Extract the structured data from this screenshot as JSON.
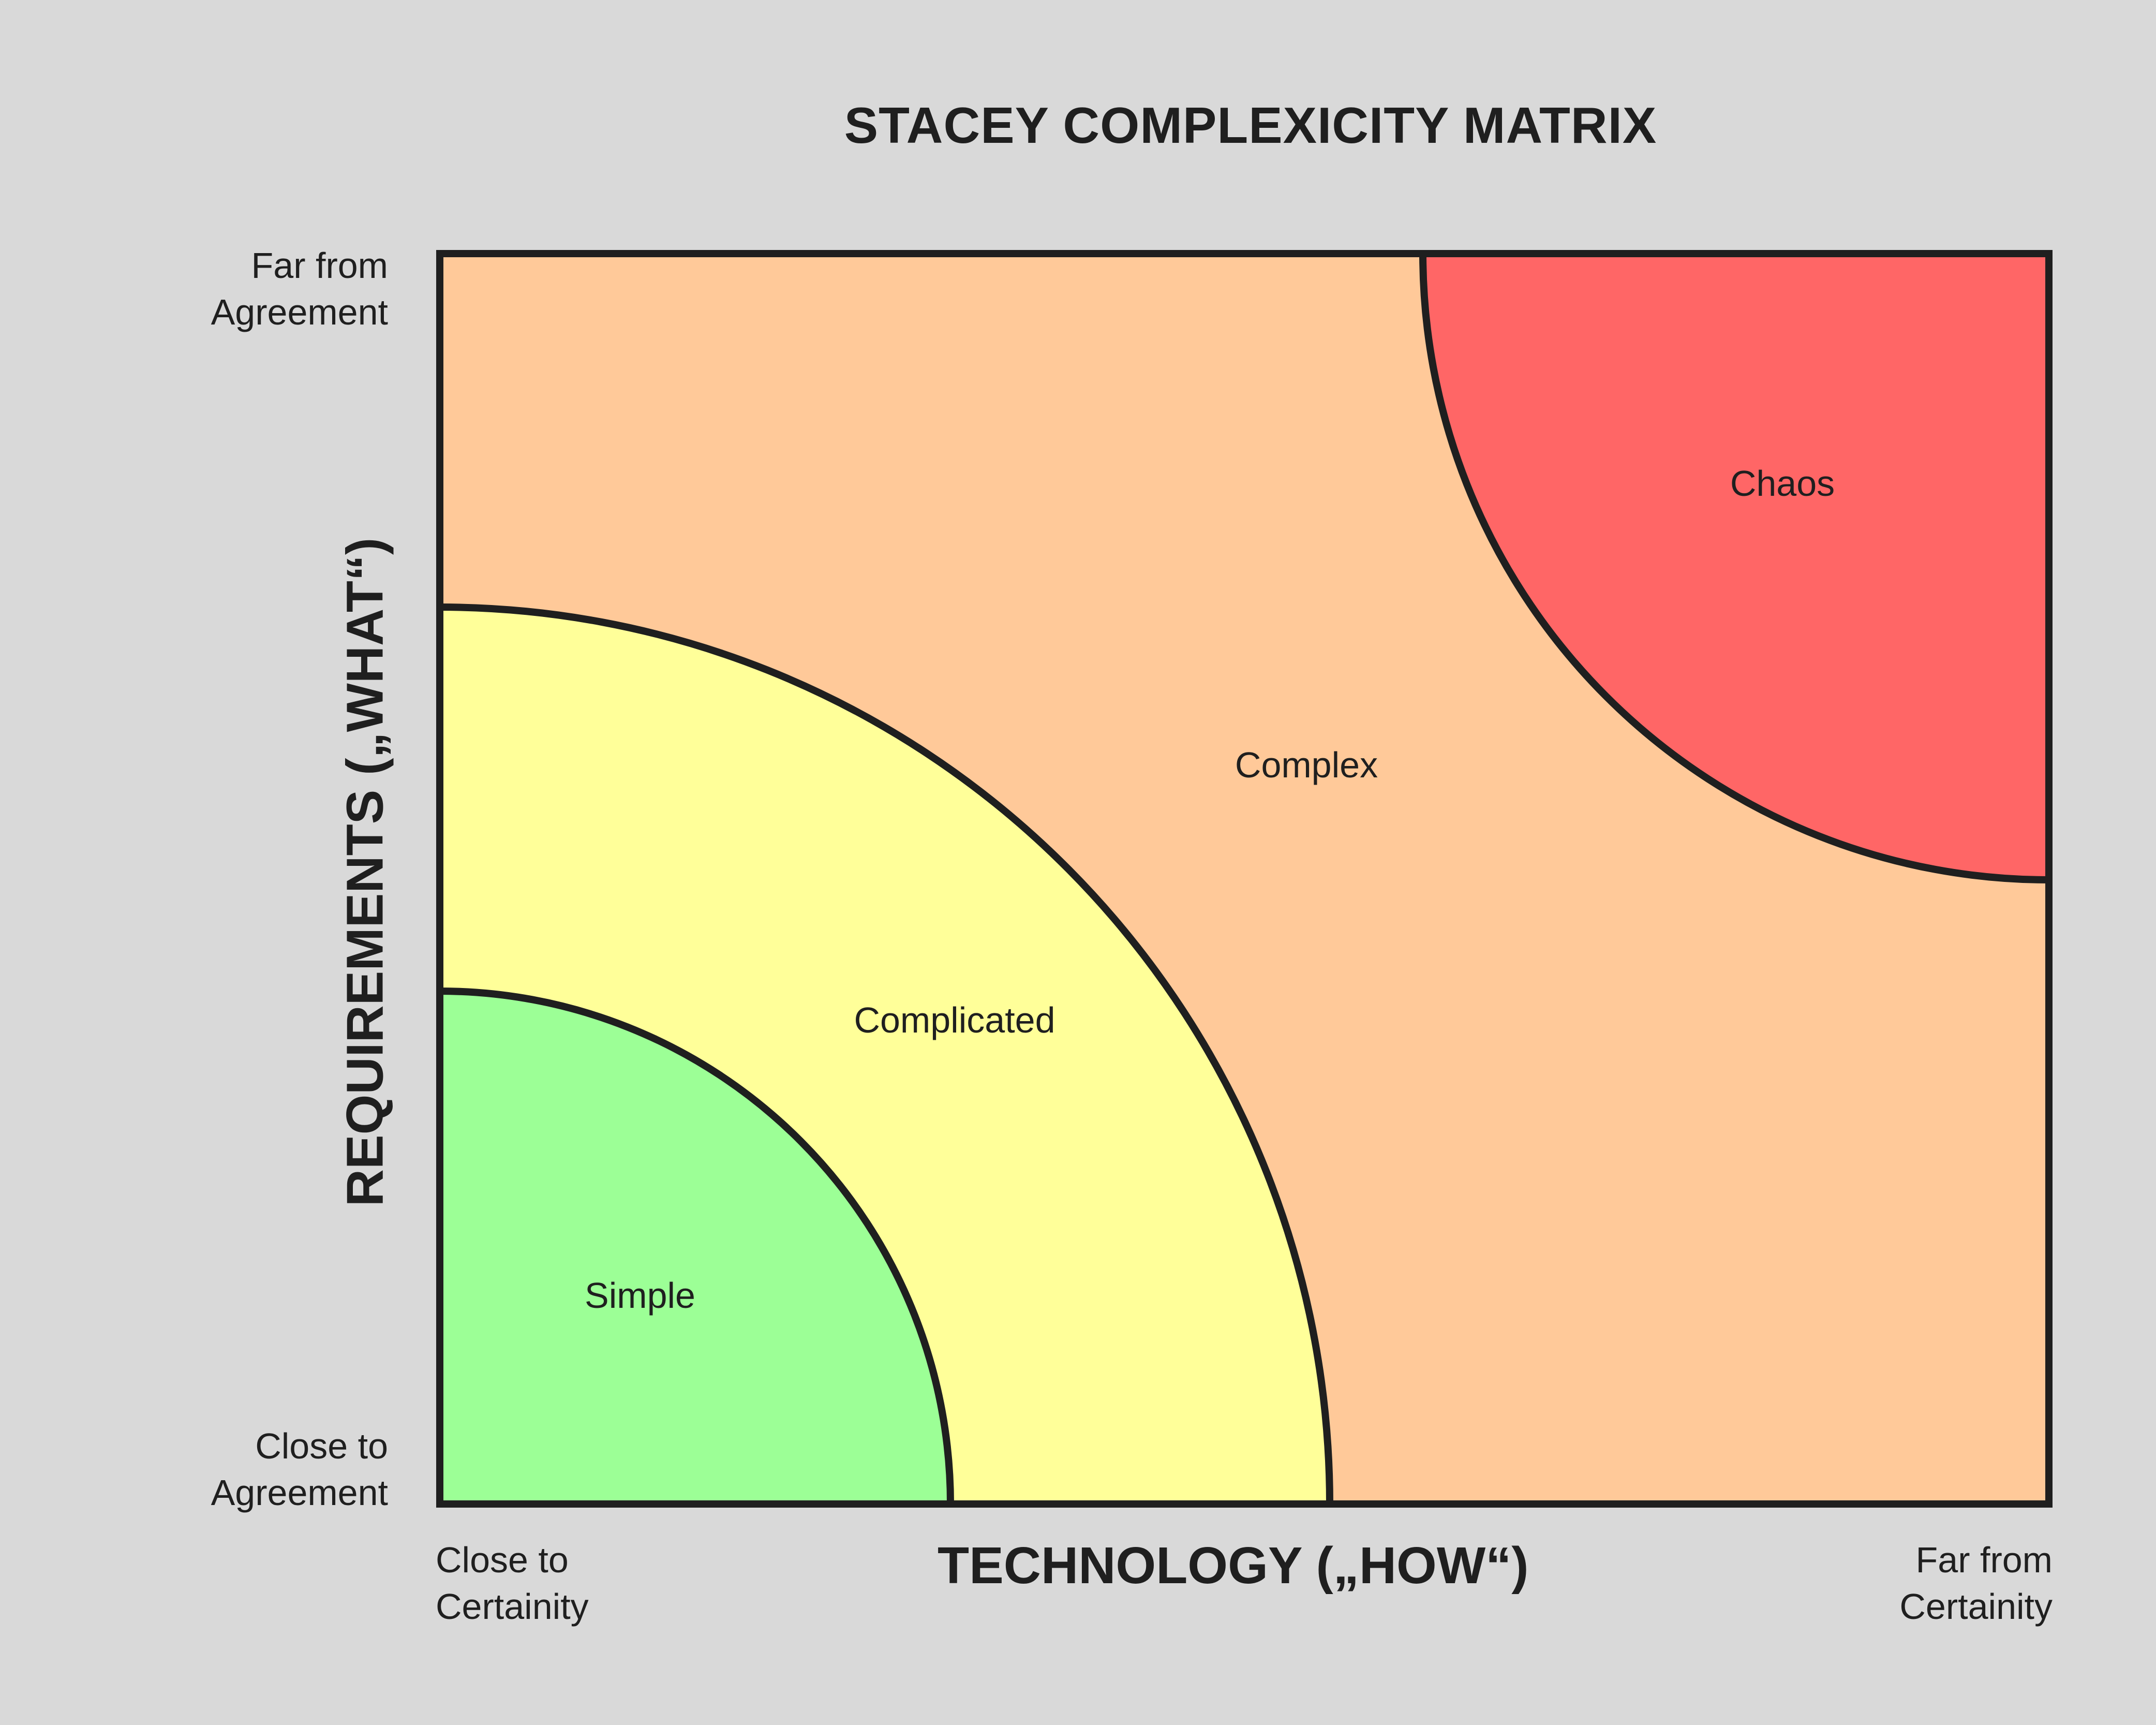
{
  "title": "STACEY COMPLEXICITY MATRIX",
  "axes": {
    "y_title": "REQUIREMENTS („WHAT“)",
    "y_top": [
      "Far from",
      "Agreement"
    ],
    "y_bottom": [
      "Close to",
      "Agreement"
    ],
    "x_title": "TECHNOLOGY („HOW“)",
    "x_left": [
      "Close to",
      "Certainity"
    ],
    "x_right": [
      "Far from",
      "Certainity"
    ]
  },
  "zones": [
    {
      "label": "Simple",
      "color": "#9cff96"
    },
    {
      "label": "Complicated",
      "color": "#ffff99"
    },
    {
      "label": "Complex",
      "color": "#ffc999"
    },
    {
      "label": "Chaos",
      "color": "#ff6666"
    }
  ],
  "outline_color": "#1f1f1f"
}
